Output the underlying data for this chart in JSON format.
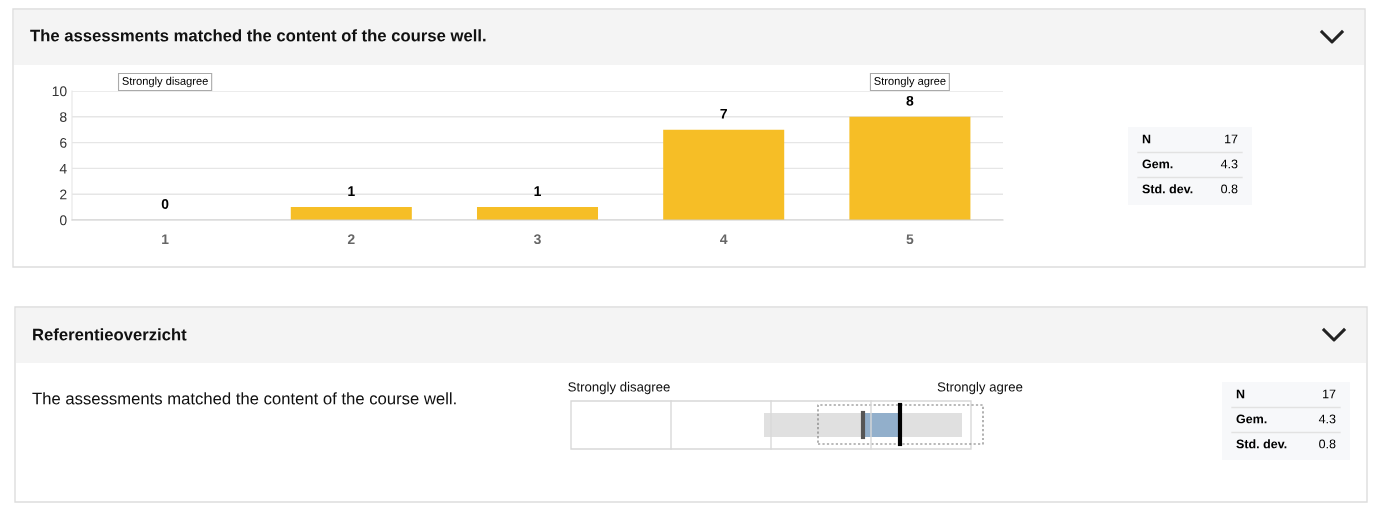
{
  "chart_data": [
    {
      "type": "bar",
      "title": "The assessments matched the content of the course well.",
      "categories": [
        "1",
        "2",
        "3",
        "4",
        "5"
      ],
      "values": [
        0,
        1,
        1,
        7,
        8
      ],
      "color": "#f6be26",
      "ylim": [
        0,
        10
      ],
      "yticks": [
        0,
        2,
        4,
        6,
        8,
        10
      ],
      "grid": "y",
      "data_labels": true,
      "annotations": [
        "Strongly disagree",
        "Strongly agree"
      ]
    },
    {
      "type": "other",
      "annotations": [
        "N",
        "17",
        "Gem.",
        "4.3",
        "Std. dev.",
        "0.8"
      ]
    },
    {
      "type": "other",
      "title": "Referentieoverzicht",
      "annotations": [
        "The assessments matched the content of the course well.",
        "Strongly disagree",
        "Strongly agree"
      ]
    },
    {
      "type": "other",
      "annotations": [
        "N",
        "17",
        "Gem.",
        "4.3",
        "Std. dev.",
        "0.8"
      ]
    }
  ]
}
